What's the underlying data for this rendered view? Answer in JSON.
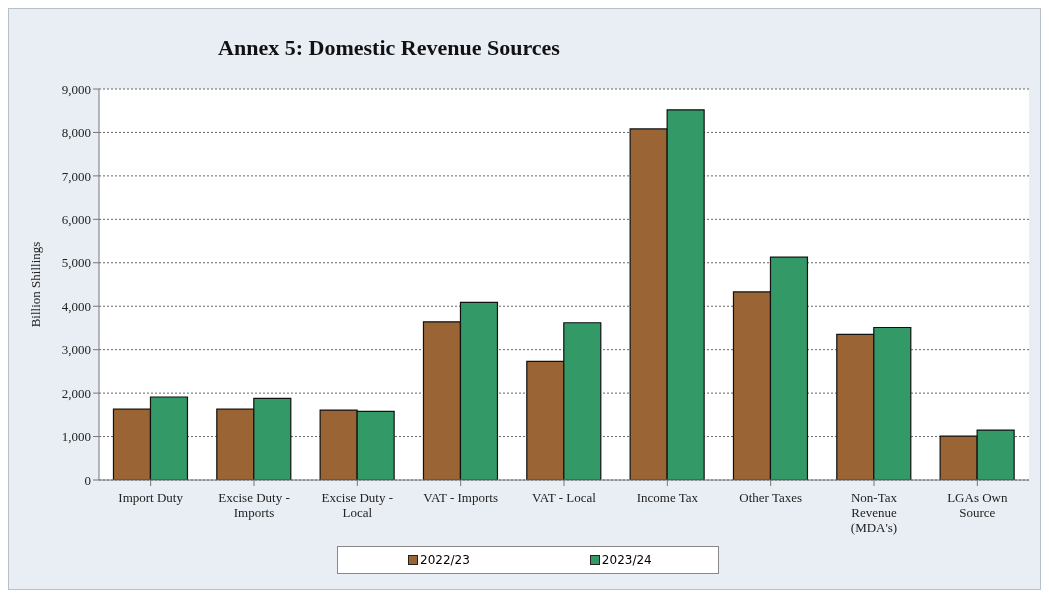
{
  "chart_data": {
    "type": "bar",
    "title": "Annex 5: Domestic Revenue Sources",
    "ylabel": "Billion Shillings",
    "categories": [
      "Import Duty",
      "Excise Duty - Imports",
      "Excise Duty - Local",
      "VAT - Imports",
      "VAT - Local",
      "Income Tax",
      "Other Taxes",
      "Non-Tax Revenue (MDA's)",
      "LGAs Own Source"
    ],
    "series": [
      {
        "name": "2022/23",
        "color": "#9a6434",
        "values": [
          1630,
          1630,
          1610,
          3640,
          2730,
          8080,
          4330,
          3350,
          1010
        ]
      },
      {
        "name": "2023/24",
        "color": "#339966",
        "values": [
          1910,
          1880,
          1580,
          4090,
          3620,
          8520,
          5130,
          3510,
          1150
        ]
      }
    ],
    "ylim": [
      0,
      9000
    ],
    "yticks": [
      {
        "value": 0,
        "label": "0"
      },
      {
        "value": 1000,
        "label": "1,000"
      },
      {
        "value": 2000,
        "label": "2,000"
      },
      {
        "value": 3000,
        "label": "3,000"
      },
      {
        "value": 4000,
        "label": "4,000"
      },
      {
        "value": 5000,
        "label": "5,000"
      },
      {
        "value": 6000,
        "label": "6,000"
      },
      {
        "value": 7000,
        "label": "7,000"
      },
      {
        "value": 8000,
        "label": "8,000"
      },
      {
        "value": 9000,
        "label": "9,000"
      }
    ],
    "grid": "y",
    "legend": "bottom"
  }
}
